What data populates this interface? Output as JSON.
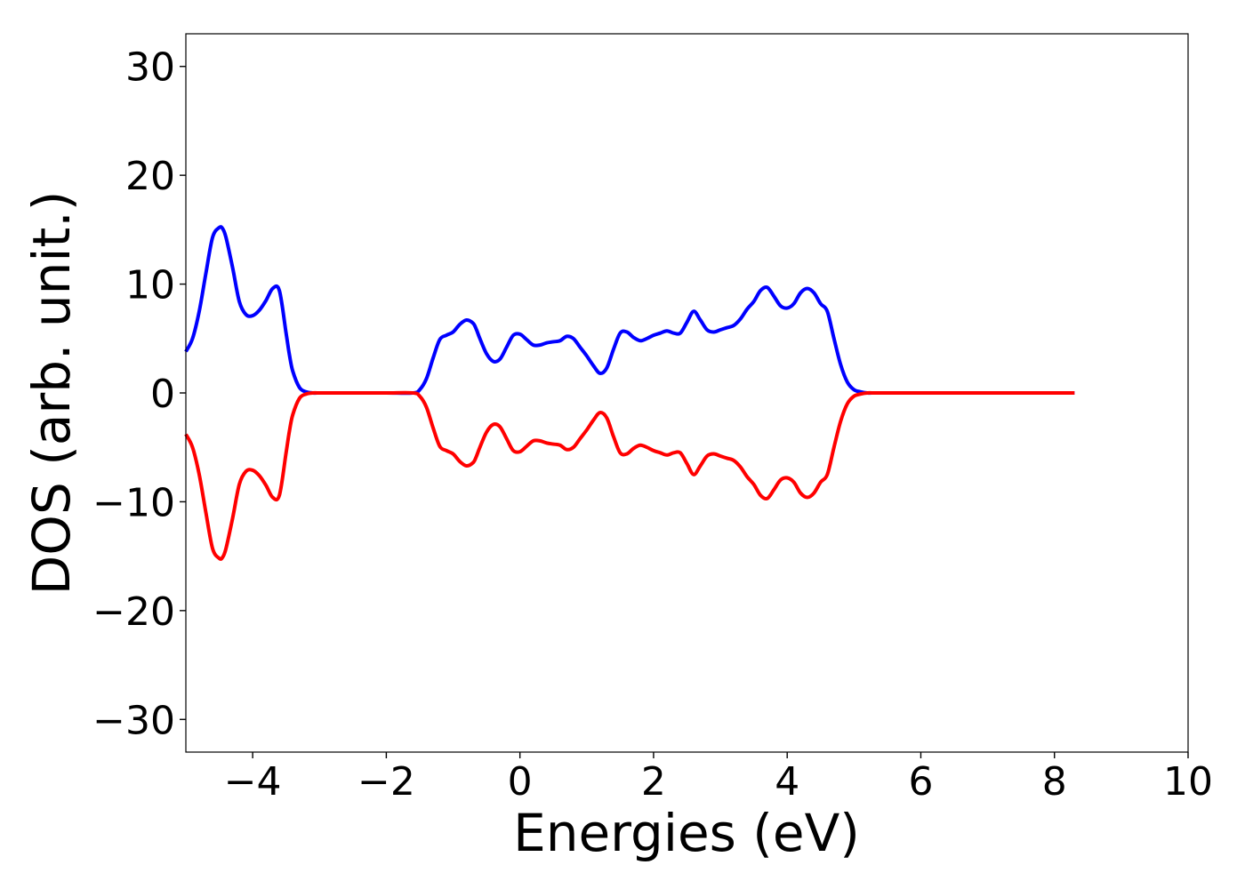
{
  "chart_data": {
    "type": "line",
    "title": "",
    "xlabel": "Energies (eV)",
    "ylabel": "DOS (arb. unit.)",
    "xlim": [
      -5,
      10
    ],
    "ylim": [
      -33,
      33
    ],
    "xticks": [
      -4,
      -2,
      0,
      2,
      4,
      6,
      8,
      10
    ],
    "xtick_labels": [
      "−4",
      "−2",
      "0",
      "2",
      "4",
      "6",
      "8",
      "10"
    ],
    "yticks": [
      30,
      20,
      10,
      0,
      -10,
      -20,
      -30
    ],
    "ytick_labels": [
      "30",
      "20",
      "10",
      "0",
      "−10",
      "−20",
      "−30"
    ],
    "grid": false,
    "legend": "none",
    "series": [
      {
        "color": "#0000ff",
        "x": [
          -5.0,
          -4.9,
          -4.8,
          -4.7,
          -4.6,
          -4.5,
          -4.45,
          -4.4,
          -4.3,
          -4.2,
          -4.1,
          -4.0,
          -3.9,
          -3.8,
          -3.7,
          -3.6,
          -3.5,
          -3.45,
          -3.4,
          -3.3,
          -3.2,
          -3.1,
          -3.0,
          -2.9,
          -2.5,
          -2.0,
          -1.6,
          -1.5,
          -1.4,
          -1.3,
          -1.2,
          -1.1,
          -1.0,
          -0.9,
          -0.8,
          -0.7,
          -0.65,
          -0.6,
          -0.5,
          -0.4,
          -0.3,
          -0.2,
          -0.1,
          0.0,
          0.1,
          0.2,
          0.3,
          0.4,
          0.5,
          0.6,
          0.7,
          0.8,
          0.9,
          1.0,
          1.1,
          1.2,
          1.3,
          1.4,
          1.5,
          1.6,
          1.7,
          1.8,
          1.9,
          2.0,
          2.1,
          2.2,
          2.3,
          2.4,
          2.5,
          2.6,
          2.7,
          2.8,
          2.9,
          3.0,
          3.1,
          3.2,
          3.3,
          3.4,
          3.5,
          3.6,
          3.7,
          3.8,
          3.9,
          4.0,
          4.1,
          4.2,
          4.3,
          4.4,
          4.5,
          4.6,
          4.7,
          4.8,
          4.9,
          5.0,
          5.1,
          5.2,
          5.3,
          5.4,
          5.5,
          5.6,
          5.7,
          5.8,
          5.9,
          6.0,
          6.1,
          6.2,
          6.3,
          6.5,
          7.0,
          7.5,
          8.0,
          8.3
        ],
        "y": [
          3.8,
          5.0,
          7.5,
          11.0,
          14.3,
          15.2,
          15.1,
          14.3,
          11.5,
          8.4,
          7.2,
          7.1,
          7.6,
          8.5,
          9.6,
          9.4,
          5.5,
          3.5,
          2.0,
          0.5,
          0.1,
          0.0,
          0.0,
          0.0,
          0.0,
          0.0,
          0.0,
          0.3,
          1.3,
          3.2,
          4.9,
          5.3,
          5.6,
          6.3,
          6.7,
          6.4,
          5.8,
          5.0,
          3.6,
          2.9,
          3.1,
          4.2,
          5.3,
          5.4,
          4.9,
          4.4,
          4.4,
          4.6,
          4.7,
          4.8,
          5.2,
          5.0,
          4.2,
          3.4,
          2.5,
          1.8,
          2.3,
          4.0,
          5.5,
          5.6,
          5.1,
          4.8,
          5.0,
          5.3,
          5.5,
          5.7,
          5.5,
          5.5,
          6.5,
          7.5,
          6.7,
          5.8,
          5.6,
          5.8,
          6.0,
          6.2,
          6.8,
          7.7,
          8.4,
          9.4,
          9.7,
          8.9,
          8.0,
          7.8,
          8.2,
          9.2,
          9.6,
          9.2,
          8.2,
          7.5,
          5.0,
          2.6,
          1.0,
          0.3,
          0.1,
          0.0,
          0.0,
          0.0,
          0.0,
          0.0,
          0.0,
          0.0,
          0.0,
          0.0,
          0.0,
          0.0,
          0.0,
          0.0,
          0.0,
          0.0,
          0.0,
          0.0
        ]
      },
      {
        "color": "#ff0000",
        "x": [
          -5.0,
          -4.9,
          -4.8,
          -4.7,
          -4.6,
          -4.5,
          -4.45,
          -4.4,
          -4.3,
          -4.2,
          -4.1,
          -4.0,
          -3.9,
          -3.8,
          -3.7,
          -3.6,
          -3.5,
          -3.45,
          -3.4,
          -3.3,
          -3.2,
          -3.1,
          -3.0,
          -2.9,
          -2.5,
          -2.0,
          -1.6,
          -1.5,
          -1.4,
          -1.3,
          -1.2,
          -1.1,
          -1.0,
          -0.9,
          -0.8,
          -0.7,
          -0.65,
          -0.6,
          -0.5,
          -0.4,
          -0.3,
          -0.2,
          -0.1,
          0.0,
          0.1,
          0.2,
          0.3,
          0.4,
          0.5,
          0.6,
          0.7,
          0.8,
          0.9,
          1.0,
          1.1,
          1.2,
          1.3,
          1.4,
          1.5,
          1.6,
          1.7,
          1.8,
          1.9,
          2.0,
          2.1,
          2.2,
          2.3,
          2.4,
          2.5,
          2.6,
          2.7,
          2.8,
          2.9,
          3.0,
          3.1,
          3.2,
          3.3,
          3.4,
          3.5,
          3.6,
          3.7,
          3.8,
          3.9,
          4.0,
          4.1,
          4.2,
          4.3,
          4.4,
          4.5,
          4.6,
          4.7,
          4.8,
          4.9,
          5.0,
          5.1,
          5.2,
          5.3,
          5.4,
          5.5,
          5.6,
          5.7,
          5.8,
          5.9,
          6.0,
          6.1,
          6.2,
          6.3,
          6.5,
          7.0,
          7.5,
          8.0,
          8.3
        ],
        "y": [
          -3.8,
          -5.0,
          -7.5,
          -11.0,
          -14.3,
          -15.2,
          -15.1,
          -14.3,
          -11.5,
          -8.4,
          -7.2,
          -7.1,
          -7.6,
          -8.5,
          -9.6,
          -9.4,
          -5.5,
          -3.5,
          -2.0,
          -0.5,
          -0.1,
          0.0,
          0.0,
          0.0,
          0.0,
          0.0,
          0.0,
          -0.3,
          -1.3,
          -3.2,
          -4.9,
          -5.3,
          -5.6,
          -6.3,
          -6.7,
          -6.4,
          -5.8,
          -5.0,
          -3.6,
          -2.9,
          -3.1,
          -4.2,
          -5.3,
          -5.4,
          -4.9,
          -4.4,
          -4.4,
          -4.6,
          -4.7,
          -4.8,
          -5.2,
          -5.0,
          -4.2,
          -3.4,
          -2.5,
          -1.8,
          -2.3,
          -4.0,
          -5.5,
          -5.6,
          -5.1,
          -4.8,
          -5.0,
          -5.3,
          -5.5,
          -5.7,
          -5.5,
          -5.5,
          -6.5,
          -7.5,
          -6.7,
          -5.8,
          -5.6,
          -5.8,
          -6.0,
          -6.2,
          -6.8,
          -7.7,
          -8.4,
          -9.4,
          -9.7,
          -8.9,
          -8.0,
          -7.8,
          -8.2,
          -9.2,
          -9.6,
          -9.2,
          -8.2,
          -7.5,
          -5.0,
          -2.6,
          -1.0,
          -0.3,
          -0.1,
          0.0,
          0.0,
          0.0,
          0.0,
          0.0,
          0.0,
          0.0,
          0.0,
          0.0,
          0.0,
          0.0,
          0.0,
          0.0,
          0.0,
          0.0,
          0.0,
          0.0
        ]
      }
    ]
  }
}
